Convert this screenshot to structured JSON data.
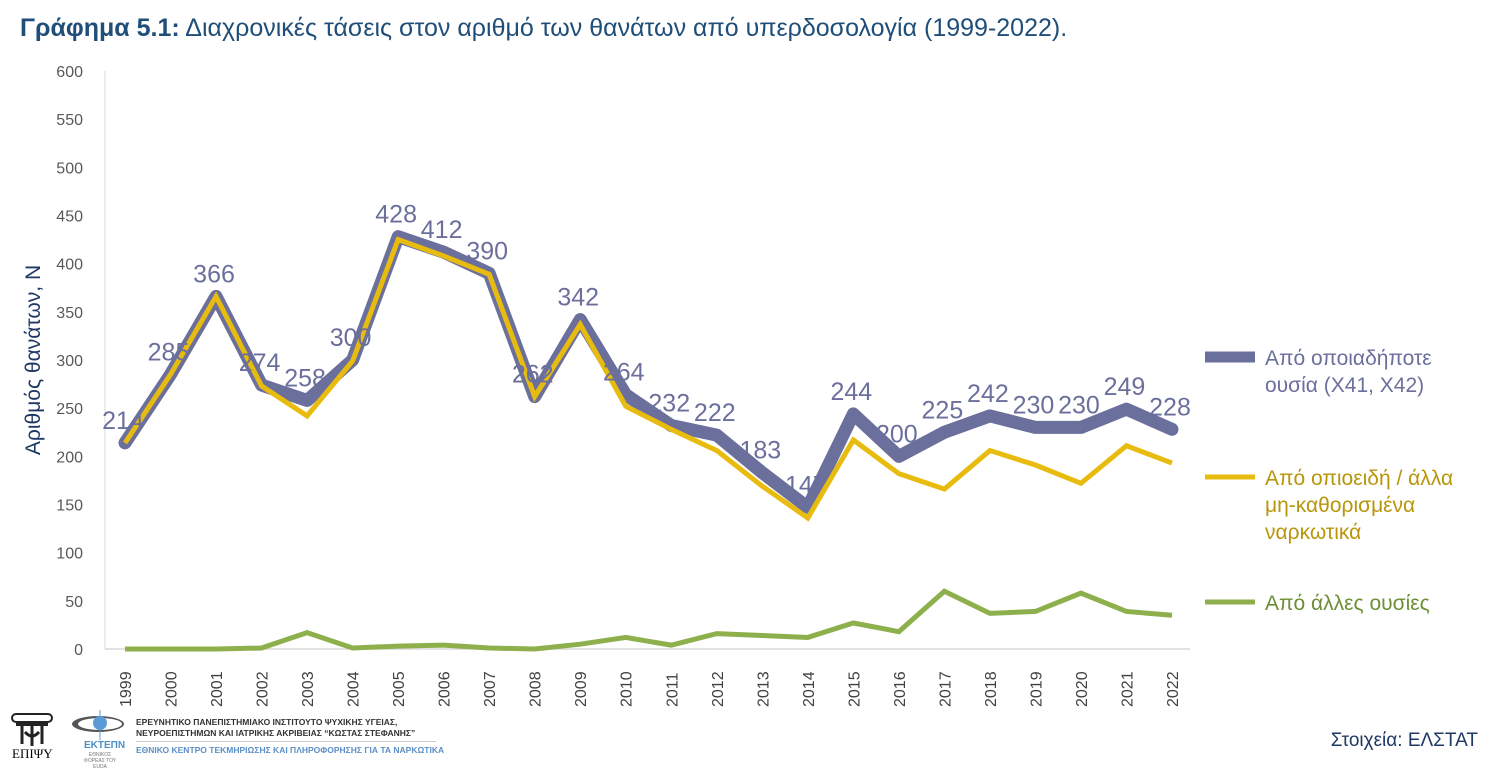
{
  "title": {
    "prefix": "Γράφημα 5.1:",
    "text": "Διαχρονικές τάσεις στον αριθμό των θανάτων από υπερδοσολογία (1999-2022)."
  },
  "chart_data": {
    "type": "line",
    "title": "Γράφημα 5.1: Διαχρονικές τάσεις στον αριθμό των θανάτων από υπερδοσολογία (1999-2022).",
    "ylabel": "Αριθμός θανάτων, N",
    "xlabel": "",
    "ylim": [
      0,
      600
    ],
    "yticks": [
      0,
      50,
      100,
      150,
      200,
      250,
      300,
      350,
      400,
      450,
      500,
      550,
      600
    ],
    "grid": false,
    "legend_position": "right",
    "categories": [
      "1999",
      "2000",
      "2001",
      "2002",
      "2003",
      "2004",
      "2005",
      "2006",
      "2007",
      "2008",
      "2009",
      "2010",
      "2011",
      "2012",
      "2013",
      "2014",
      "2015",
      "2016",
      "2017",
      "2018",
      "2019",
      "2020",
      "2021",
      "2022"
    ],
    "series": [
      {
        "name": "Από οποιαδήποτε ουσία (X41, X42)",
        "color": "#6b6f9c",
        "data_labels": true,
        "values": [
          214,
          285,
          366,
          274,
          258,
          300,
          428,
          412,
          390,
          262,
          342,
          264,
          232,
          222,
          183,
          147,
          244,
          200,
          225,
          242,
          230,
          230,
          249,
          228
        ]
      },
      {
        "name": "Από οπιοειδή / άλλα μη-καθορισμένα ναρκωτικά",
        "color": "#e8bc0e",
        "values": [
          214,
          285,
          366,
          273,
          242,
          299,
          425,
          408,
          389,
          262,
          337,
          252,
          228,
          206,
          169,
          136,
          217,
          182,
          166,
          206,
          191,
          172,
          211,
          193
        ]
      },
      {
        "name": "Από άλλες ουσίες",
        "color": "#8db04c",
        "values": [
          0,
          0,
          0,
          1,
          17,
          1,
          3,
          4,
          1,
          0,
          5,
          12,
          4,
          16,
          14,
          12,
          27,
          18,
          60,
          37,
          39,
          58,
          39,
          35
        ]
      }
    ]
  },
  "legend": [
    {
      "lines": [
        "Από οποιαδήποτε",
        "ουσία (X41, X42)"
      ],
      "color": "#6b6f9c",
      "text_color": "#6b6f9c"
    },
    {
      "lines": [
        "Από οπιοειδή / άλλα",
        "μη-καθορισμένα",
        "ναρκωτικά"
      ],
      "color": "#e8bc0e",
      "text_color": "#b8960a"
    },
    {
      "lines": [
        "Από άλλες ουσίες"
      ],
      "color": "#8db04c",
      "text_color": "#6e8f35"
    }
  ],
  "footer": {
    "source": "Στοιχεία: ΕΛΣΤΑΤ",
    "institute_line1": "ΕΡΕΥΝΗΤΙΚΟ ΠΑΝΕΠΙΣΤΗΜΙΑΚΟ ΙΝΣΤΙΤΟΥΤΟ ΨΥΧΙΚΗΣ ΥΓΕΙΑΣ,",
    "institute_line2": "ΝΕΥΡΟΕΠΙΣΤΗΜΩΝ ΚΑΙ ΙΑΤΡΙΚΗΣ ΑΚΡΙΒΕΙΑΣ “ΚΩΣΤΑΣ ΣΤΕΦΑΝΗΣ”",
    "center": "ΕΘΝΙΚΟ ΚΕΝΤΡΟ ΤΕΚΜΗΡΙΩΣΗΣ ΚΑΙ ΠΛΗΡΟΦΟΡΗΣΗΣ ΓΙΑ ΤΑ ΝΑΡΚΩΤΙΚΑ",
    "logo_epipsy": "ΕΠΙΨΥ",
    "logo_ektepn": "ΕΚΤΕΠΝ",
    "logo_ektepn_sub": "ΕΘΝΙΚΟΣ ΦΟΡΕΑΣ ΤΟΥ EUDA"
  }
}
